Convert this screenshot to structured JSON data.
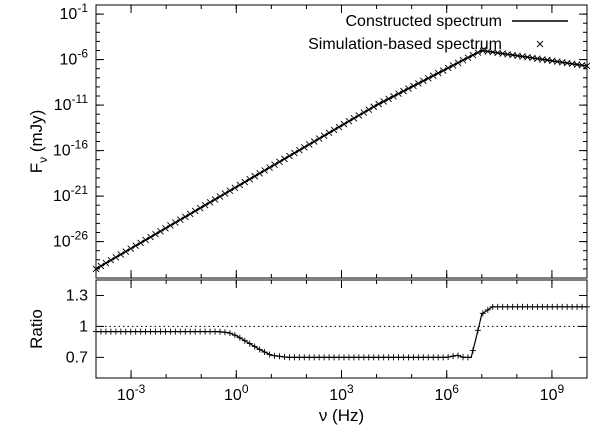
{
  "chart_data": [
    {
      "type": "line",
      "panel": "top",
      "ylabel": "F",
      "ylabel_sub": "ν",
      "ylabel_unit": " (mJy)",
      "xscale": "log",
      "yscale": "log",
      "xlim": [
        0.0001,
        10000000000.0
      ],
      "ylim": [
        1e-30,
        1.0
      ],
      "yticks": [
        {
          "value": 0.1,
          "base": "10",
          "exp": "-1"
        },
        {
          "value": 1e-06,
          "base": "10",
          "exp": "-6"
        },
        {
          "value": 1e-11,
          "base": "10",
          "exp": "-11"
        },
        {
          "value": 1e-16,
          "base": "10",
          "exp": "-16"
        },
        {
          "value": 1e-21,
          "base": "10",
          "exp": "-21"
        },
        {
          "value": 1e-26,
          "base": "10",
          "exp": "-26"
        }
      ],
      "legend_position": "top-right",
      "series": [
        {
          "name": "Constructed spectrum",
          "style": "solid-line",
          "color": "#000000",
          "x": [
            0.0001,
            1,
            10000,
            10000000,
            10000000000
          ],
          "y": [
            1e-29,
            1e-20,
            1e-11,
            1e-05,
            2e-07
          ]
        },
        {
          "name": "Simulation-based spectrum",
          "style": "x-markers",
          "color": "#000000",
          "x": [
            0.0001,
            1,
            10000,
            10000000,
            10000000000
          ],
          "y": [
            1e-29,
            1e-20,
            1e-11,
            1e-05,
            2e-07
          ]
        }
      ]
    },
    {
      "type": "line",
      "panel": "bottom",
      "xlabel": "ν (Hz)",
      "ylabel": "Ratio",
      "xscale": "log",
      "xlim": [
        0.0001,
        10000000000.0
      ],
      "ylim": [
        0.5,
        1.45
      ],
      "xticks": [
        {
          "value": 0.001,
          "base": "10",
          "exp": "-3"
        },
        {
          "value": 1.0,
          "base": "10",
          "exp": "0"
        },
        {
          "value": 1000.0,
          "base": "10",
          "exp": "3"
        },
        {
          "value": 1000000.0,
          "base": "10",
          "exp": "6"
        },
        {
          "value": 1000000000.0,
          "base": "10",
          "exp": "9"
        }
      ],
      "yticks": [
        {
          "value": 1.3,
          "label": "1.3"
        },
        {
          "value": 1.0,
          "label": "1"
        },
        {
          "value": 0.7,
          "label": "0.7"
        }
      ],
      "reference_line": {
        "y": 1.0,
        "style": "dotted"
      },
      "series": [
        {
          "name": "",
          "style": "line-with-plus-markers",
          "color": "#000000",
          "x": [
            0.0001,
            0.001,
            0.01,
            0.1,
            0.3,
            0.6,
            1,
            2,
            5,
            10,
            30,
            100,
            1000,
            10000,
            100000,
            1000000,
            2000000,
            3000000,
            5000000,
            7000000,
            10000000,
            20000000,
            100000000,
            1000000000,
            10000000000
          ],
          "y": [
            0.95,
            0.95,
            0.95,
            0.95,
            0.95,
            0.94,
            0.91,
            0.85,
            0.77,
            0.72,
            0.7,
            0.7,
            0.7,
            0.7,
            0.7,
            0.7,
            0.72,
            0.7,
            0.7,
            0.9,
            1.12,
            1.19,
            1.19,
            1.19,
            1.19
          ]
        }
      ]
    }
  ]
}
